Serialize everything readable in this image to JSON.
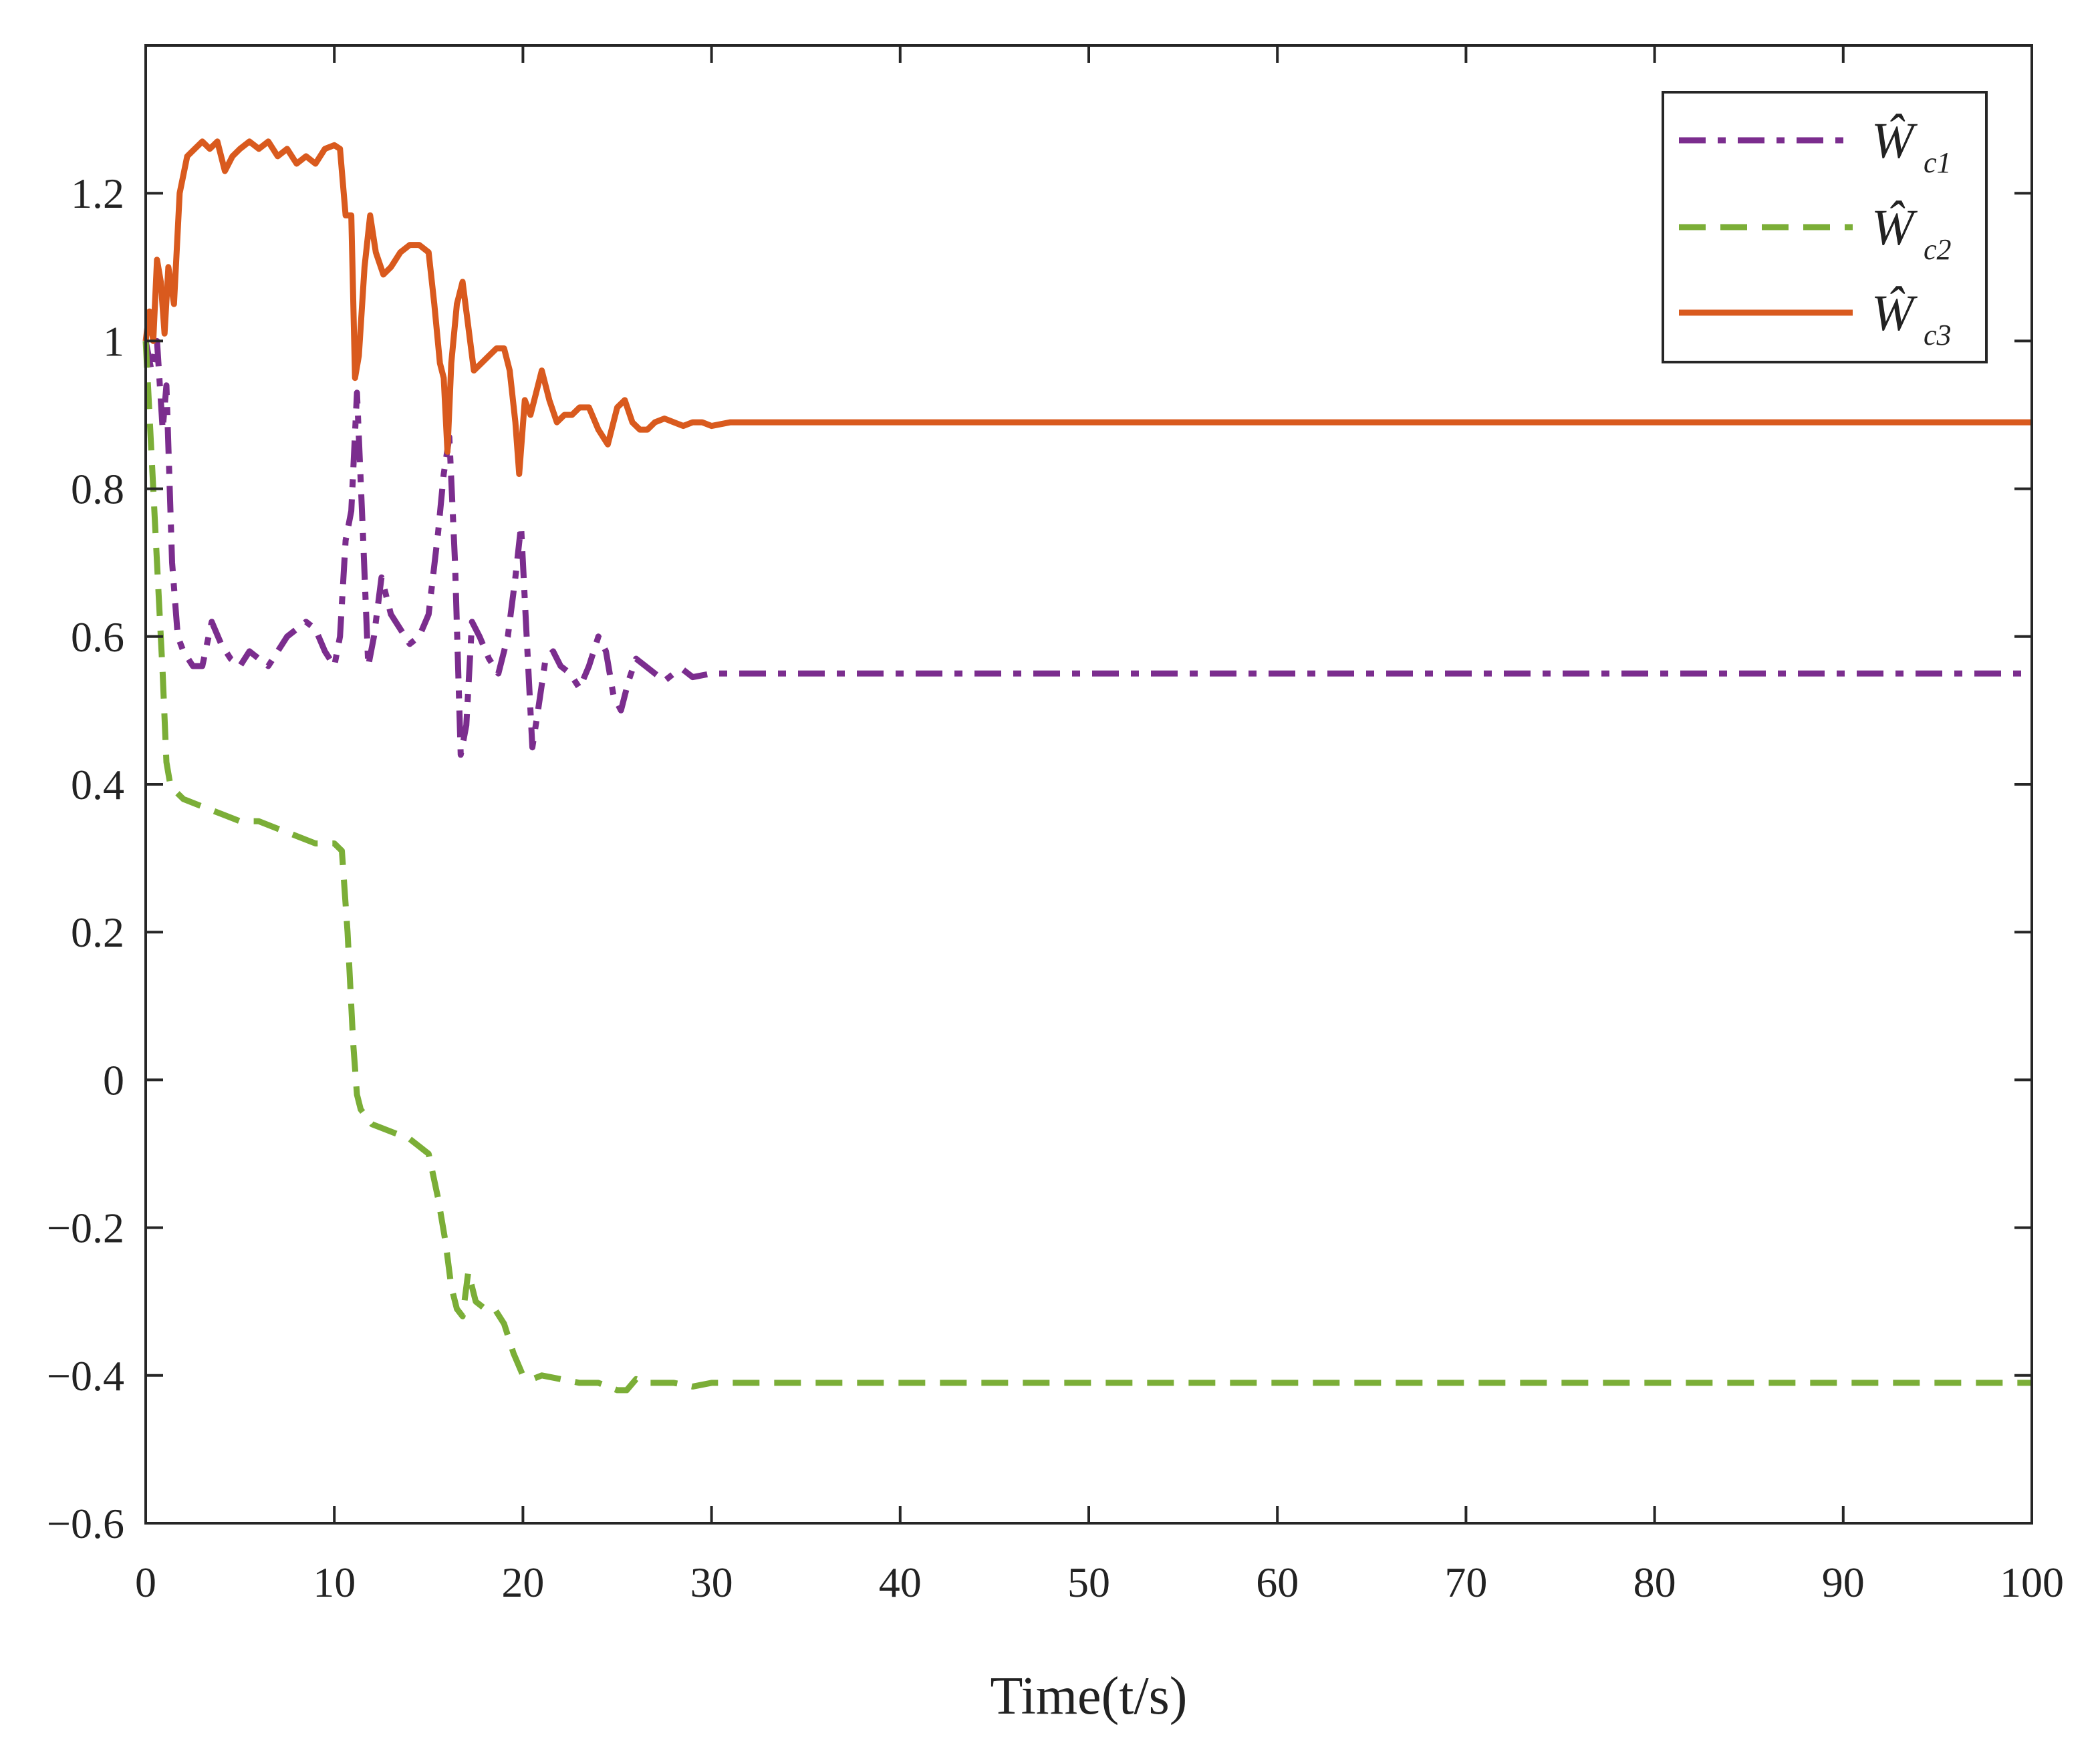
{
  "chart_data": {
    "type": "line",
    "title": "",
    "xlabel": "Time(t/s)",
    "ylabel": "",
    "xlim": [
      0,
      100
    ],
    "ylim": [
      -0.6,
      1.4
    ],
    "xticks": [
      0,
      10,
      20,
      30,
      40,
      50,
      60,
      70,
      80,
      90,
      100
    ],
    "xtick_labels": [
      "0",
      "10",
      "20",
      "30",
      "40",
      "50",
      "60",
      "70",
      "80",
      "90",
      "100"
    ],
    "yticks": [
      -0.6,
      -0.4,
      -0.2,
      0,
      0.2,
      0.4,
      0.6,
      0.8,
      1,
      1.2
    ],
    "ytick_labels": [
      "−0.6",
      "−0.4",
      "−0.2",
      "0",
      "0.2",
      "0.4",
      "0.6",
      "0.8",
      "1",
      "1.2"
    ],
    "grid": false,
    "legend_position": "top-right",
    "series": [
      {
        "name": "Ŵc1",
        "legend_main": "Ŵ",
        "legend_sub": "c1",
        "color": "#7B2D8E",
        "style": "dashdot",
        "x": [
          0,
          0.3,
          0.6,
          0.9,
          1.1,
          1.4,
          1.7,
          2.0,
          2.5,
          3.0,
          3.5,
          4.0,
          4.5,
          5.0,
          5.5,
          6.0,
          6.5,
          7.0,
          7.5,
          8.0,
          8.5,
          9.0,
          9.5,
          10.0,
          10.3,
          10.6,
          10.9,
          11.2,
          11.5,
          11.8,
          12.1,
          12.5,
          13.0,
          13.5,
          14.0,
          14.5,
          15.0,
          15.5,
          15.8,
          16.1,
          16.4,
          16.7,
          17.0,
          17.3,
          17.7,
          18.2,
          18.7,
          19.2,
          19.6,
          19.9,
          20.2,
          20.5,
          20.8,
          21.2,
          21.6,
          22.0,
          22.5,
          23.0,
          23.5,
          24.0,
          24.4,
          24.8,
          25.2,
          25.6,
          26.0,
          26.5,
          27.0,
          27.5,
          28.0,
          28.5,
          29.0,
          30.0,
          32.0,
          35.0,
          40.0,
          50.0,
          60.0,
          70.0,
          80.0,
          90.0,
          100.0
        ],
        "y": [
          1.0,
          0.96,
          1.0,
          0.88,
          0.94,
          0.7,
          0.6,
          0.58,
          0.56,
          0.56,
          0.62,
          0.59,
          0.57,
          0.56,
          0.58,
          0.57,
          0.56,
          0.58,
          0.6,
          0.61,
          0.62,
          0.61,
          0.58,
          0.56,
          0.6,
          0.73,
          0.77,
          0.93,
          0.75,
          0.56,
          0.6,
          0.68,
          0.63,
          0.61,
          0.59,
          0.6,
          0.63,
          0.74,
          0.82,
          0.87,
          0.7,
          0.44,
          0.48,
          0.62,
          0.6,
          0.57,
          0.55,
          0.6,
          0.68,
          0.75,
          0.6,
          0.45,
          0.5,
          0.57,
          0.58,
          0.56,
          0.55,
          0.53,
          0.56,
          0.6,
          0.58,
          0.52,
          0.5,
          0.54,
          0.57,
          0.56,
          0.55,
          0.54,
          0.55,
          0.555,
          0.545,
          0.55,
          0.55,
          0.55,
          0.55,
          0.55,
          0.55,
          0.55,
          0.55,
          0.55,
          0.55
        ]
      },
      {
        "name": "Ŵc2",
        "legend_main": "Ŵ",
        "legend_sub": "c2",
        "color": "#7BAE37",
        "style": "dashed",
        "x": [
          0,
          0.3,
          0.6,
          0.9,
          1.1,
          1.3,
          1.6,
          2.0,
          3.0,
          4.0,
          5.0,
          6.0,
          7.0,
          8.0,
          9.0,
          10.0,
          10.4,
          10.7,
          11.0,
          11.2,
          11.4,
          11.7,
          12.0,
          12.5,
          13.0,
          14.0,
          15.0,
          15.5,
          15.9,
          16.2,
          16.5,
          16.8,
          17.1,
          17.5,
          18.0,
          18.5,
          19.0,
          19.5,
          20.0,
          20.5,
          21.0,
          22.0,
          23.0,
          24.0,
          25.0,
          25.5,
          26.0,
          26.5,
          27.0,
          28.0,
          29.0,
          30.0,
          35.0,
          40.0,
          50.0,
          60.0,
          70.0,
          80.0,
          90.0,
          100.0
        ],
        "y": [
          1.0,
          0.85,
          0.7,
          0.55,
          0.43,
          0.4,
          0.39,
          0.38,
          0.37,
          0.36,
          0.35,
          0.35,
          0.34,
          0.33,
          0.32,
          0.32,
          0.31,
          0.2,
          0.05,
          -0.02,
          -0.04,
          -0.05,
          -0.06,
          -0.065,
          -0.07,
          -0.08,
          -0.1,
          -0.16,
          -0.22,
          -0.28,
          -0.31,
          -0.32,
          -0.26,
          -0.3,
          -0.31,
          -0.31,
          -0.33,
          -0.37,
          -0.4,
          -0.405,
          -0.4,
          -0.405,
          -0.41,
          -0.41,
          -0.42,
          -0.42,
          -0.405,
          -0.41,
          -0.41,
          -0.41,
          -0.415,
          -0.41,
          -0.41,
          -0.41,
          -0.41,
          -0.41,
          -0.41,
          -0.41,
          -0.41,
          -0.41
        ]
      },
      {
        "name": "Ŵc3",
        "legend_main": "Ŵ",
        "legend_sub": "c3",
        "color": "#D95A1E",
        "style": "solid",
        "x": [
          0,
          0.2,
          0.4,
          0.6,
          0.8,
          1.0,
          1.2,
          1.5,
          1.8,
          2.2,
          2.6,
          3.0,
          3.4,
          3.8,
          4.2,
          4.6,
          5.0,
          5.5,
          6.0,
          6.5,
          7.0,
          7.5,
          8.0,
          8.5,
          9.0,
          9.5,
          10.0,
          10.3,
          10.6,
          10.9,
          11.1,
          11.3,
          11.6,
          11.9,
          12.2,
          12.6,
          13.0,
          13.5,
          14.0,
          14.5,
          15.0,
          15.3,
          15.6,
          15.8,
          16.0,
          16.2,
          16.5,
          16.8,
          17.1,
          17.4,
          17.8,
          18.2,
          18.6,
          19.0,
          19.3,
          19.6,
          19.8,
          20.1,
          20.4,
          20.7,
          21.0,
          21.4,
          21.8,
          22.2,
          22.6,
          23.0,
          23.5,
          24.0,
          24.5,
          25.0,
          25.4,
          25.8,
          26.2,
          26.6,
          27.0,
          27.5,
          28.0,
          28.5,
          29.0,
          29.5,
          30.0,
          31.0,
          32.0,
          33.0,
          35.0,
          40.0,
          50.0,
          60.0,
          70.0,
          80.0,
          90.0,
          100.0
        ],
        "y": [
          1.0,
          1.04,
          1.0,
          1.11,
          1.08,
          1.01,
          1.1,
          1.05,
          1.2,
          1.25,
          1.26,
          1.27,
          1.26,
          1.27,
          1.23,
          1.25,
          1.26,
          1.27,
          1.26,
          1.27,
          1.25,
          1.26,
          1.24,
          1.25,
          1.24,
          1.26,
          1.265,
          1.26,
          1.17,
          1.17,
          0.95,
          0.98,
          1.1,
          1.17,
          1.12,
          1.09,
          1.1,
          1.12,
          1.13,
          1.13,
          1.12,
          1.05,
          0.97,
          0.95,
          0.85,
          0.97,
          1.05,
          1.08,
          1.02,
          0.96,
          0.97,
          0.98,
          0.99,
          0.99,
          0.96,
          0.89,
          0.82,
          0.92,
          0.9,
          0.93,
          0.96,
          0.92,
          0.89,
          0.9,
          0.9,
          0.91,
          0.91,
          0.88,
          0.86,
          0.91,
          0.92,
          0.89,
          0.88,
          0.88,
          0.89,
          0.895,
          0.89,
          0.885,
          0.89,
          0.89,
          0.885,
          0.89,
          0.89,
          0.89,
          0.89,
          0.89,
          0.89,
          0.89,
          0.89,
          0.89,
          0.89,
          0.89
        ]
      }
    ]
  }
}
